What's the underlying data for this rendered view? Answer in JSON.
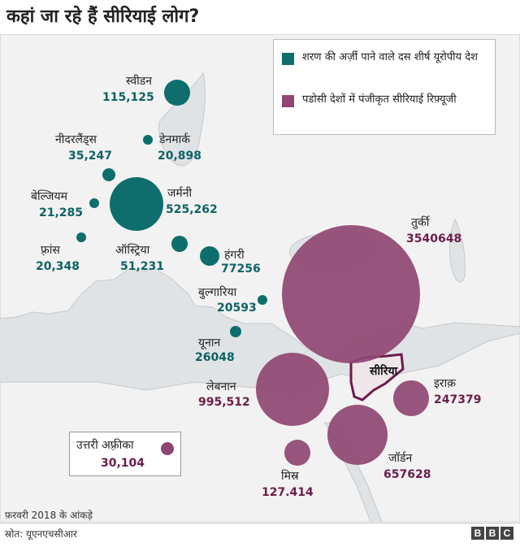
{
  "title": "कहां जा रहे हैं सीरियाई लोग?",
  "legend": {
    "top_ten": {
      "label": "शरण की अर्ज़ी पाने वाले दस शीर्ष यूरोपीय देश",
      "color": "#0e6e6e"
    },
    "neighbors": {
      "label": "पडोसी देशों में पंजीकृत सीरियाई रिफ़्यूजी",
      "color": "#8f4672"
    }
  },
  "countries": {
    "sweden": {
      "name": "स्वीडन",
      "value": "115,125"
    },
    "netherlands": {
      "name": "नीदरलैंड्स",
      "value": "35,247"
    },
    "denmark": {
      "name": "डेनमार्क",
      "value": "20,898"
    },
    "belgium": {
      "name": "बेल्जियम",
      "value": "21,285"
    },
    "germany": {
      "name": "जर्मनी",
      "value": "525,262"
    },
    "france": {
      "name": "फ़्रांस",
      "value": "20,348"
    },
    "austria": {
      "name": "ऑस्ट्रिया",
      "value": "51,231"
    },
    "hungary": {
      "name": "हंगरी",
      "value": "77256"
    },
    "bulgaria": {
      "name": "बुल्गारिया",
      "value": "20593"
    },
    "greece": {
      "name": "यूनान",
      "value": "26048"
    },
    "turkey": {
      "name": "तुर्की",
      "value": "3540648"
    },
    "lebanon": {
      "name": "लेबनान",
      "value": "995,512"
    },
    "iraq": {
      "name": "इराक़",
      "value": "247379"
    },
    "jordan": {
      "name": "जॉर्डन",
      "value": "657628"
    },
    "egypt": {
      "name": "मिस्र",
      "value": "127.414"
    },
    "north_africa": {
      "name": "उत्तरी अफ़्रीका",
      "value": "30,104"
    }
  },
  "syria_label": "सीरिया",
  "note": "फ़रवरी 2018 के आंकड़े",
  "source": "स्रोत: यूएनएचसीआर",
  "brand": [
    "B",
    "B",
    "C"
  ]
}
